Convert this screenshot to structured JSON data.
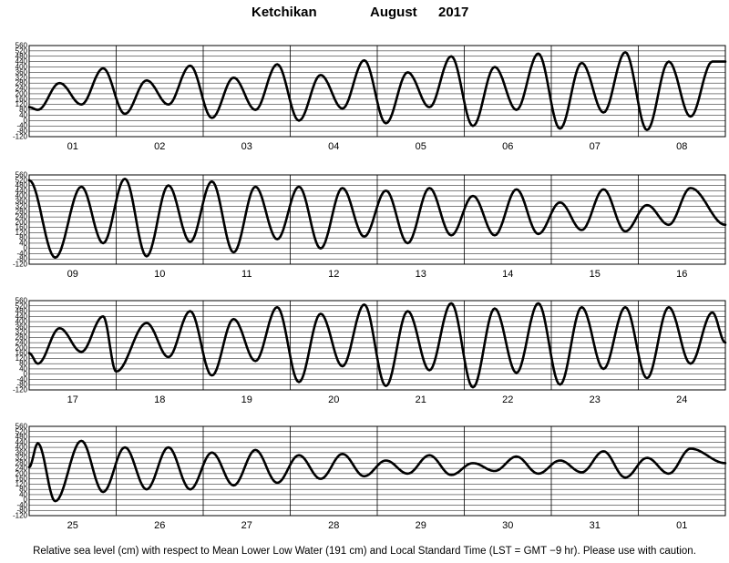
{
  "header": {
    "station": "Ketchikan",
    "month": "August",
    "year": "2017"
  },
  "footnote": "Relative sea level (cm) with respect to Mean Lower Low Water (191 cm) and Local Standard Time (LST = GMT −9 hr). Please use with caution.",
  "chart_data": {
    "type": "line",
    "title": "Ketchikan August 2017",
    "ylabel": "Relative sea level (cm)",
    "xlabel": "",
    "ylim": [
      -120,
      560
    ],
    "yticks": [
      560,
      520,
      480,
      440,
      400,
      360,
      320,
      280,
      240,
      200,
      160,
      120,
      80,
      40,
      0,
      -40,
      -80,
      -120
    ],
    "grid": true,
    "panels": [
      {
        "days": [
          "01",
          "02",
          "03",
          "04",
          "05",
          "06",
          "07",
          "08"
        ],
        "extrema": [
          [
            0,
            100
          ],
          [
            0.1,
            80
          ],
          [
            0.35,
            280
          ],
          [
            0.6,
            120
          ],
          [
            0.85,
            390
          ],
          [
            1.1,
            50
          ],
          [
            1.35,
            300
          ],
          [
            1.6,
            120
          ],
          [
            1.85,
            410
          ],
          [
            2.1,
            20
          ],
          [
            2.35,
            320
          ],
          [
            2.6,
            80
          ],
          [
            2.85,
            420
          ],
          [
            3.1,
            0
          ],
          [
            3.35,
            340
          ],
          [
            3.6,
            90
          ],
          [
            3.85,
            450
          ],
          [
            4.1,
            -20
          ],
          [
            4.35,
            360
          ],
          [
            4.6,
            100
          ],
          [
            4.85,
            480
          ],
          [
            5.1,
            -40
          ],
          [
            5.35,
            400
          ],
          [
            5.6,
            80
          ],
          [
            5.85,
            500
          ],
          [
            6.1,
            -60
          ],
          [
            6.35,
            430
          ],
          [
            6.6,
            60
          ],
          [
            6.85,
            510
          ],
          [
            7.1,
            -70
          ],
          [
            7.35,
            440
          ],
          [
            7.6,
            30
          ],
          [
            7.85,
            440
          ],
          [
            8,
            440
          ]
        ]
      },
      {
        "days": [
          "09",
          "10",
          "11",
          "12",
          "13",
          "14",
          "15",
          "16"
        ],
        "extrema": [
          [
            0,
            520
          ],
          [
            0.3,
            -70
          ],
          [
            0.6,
            470
          ],
          [
            0.85,
            40
          ],
          [
            1.1,
            530
          ],
          [
            1.35,
            -60
          ],
          [
            1.6,
            480
          ],
          [
            1.85,
            50
          ],
          [
            2.1,
            510
          ],
          [
            2.35,
            -30
          ],
          [
            2.6,
            470
          ],
          [
            2.85,
            70
          ],
          [
            3.1,
            470
          ],
          [
            3.35,
            0
          ],
          [
            3.6,
            460
          ],
          [
            3.85,
            90
          ],
          [
            4.1,
            440
          ],
          [
            4.35,
            40
          ],
          [
            4.6,
            460
          ],
          [
            4.85,
            100
          ],
          [
            5.1,
            400
          ],
          [
            5.35,
            100
          ],
          [
            5.6,
            450
          ],
          [
            5.85,
            110
          ],
          [
            6.1,
            350
          ],
          [
            6.35,
            140
          ],
          [
            6.6,
            450
          ],
          [
            6.85,
            130
          ],
          [
            7.1,
            330
          ],
          [
            7.35,
            180
          ],
          [
            7.6,
            460
          ],
          [
            8,
            180
          ]
        ]
      },
      {
        "days": [
          "17",
          "18",
          "19",
          "20",
          "21",
          "22",
          "23",
          "24"
        ],
        "extrema": [
          [
            0,
            160
          ],
          [
            0.1,
            80
          ],
          [
            0.35,
            350
          ],
          [
            0.6,
            170
          ],
          [
            0.85,
            440
          ],
          [
            1.0,
            20
          ],
          [
            1.35,
            390
          ],
          [
            1.6,
            130
          ],
          [
            1.85,
            480
          ],
          [
            2.1,
            -10
          ],
          [
            2.35,
            420
          ],
          [
            2.6,
            100
          ],
          [
            2.85,
            510
          ],
          [
            3.1,
            -60
          ],
          [
            3.35,
            460
          ],
          [
            3.6,
            60
          ],
          [
            3.85,
            530
          ],
          [
            4.1,
            -90
          ],
          [
            4.35,
            480
          ],
          [
            4.6,
            30
          ],
          [
            4.85,
            540
          ],
          [
            5.1,
            -100
          ],
          [
            5.35,
            500
          ],
          [
            5.6,
            10
          ],
          [
            5.85,
            540
          ],
          [
            6.1,
            -80
          ],
          [
            6.35,
            510
          ],
          [
            6.6,
            40
          ],
          [
            6.85,
            510
          ],
          [
            7.1,
            -30
          ],
          [
            7.35,
            510
          ],
          [
            7.6,
            80
          ],
          [
            7.85,
            470
          ],
          [
            8,
            240
          ]
        ]
      },
      {
        "days": [
          "25",
          "26",
          "27",
          "28",
          "29",
          "30",
          "31",
          "01"
        ],
        "extrema": [
          [
            0,
            250
          ],
          [
            0.1,
            430
          ],
          [
            0.3,
            -10
          ],
          [
            0.6,
            450
          ],
          [
            0.85,
            60
          ],
          [
            1.1,
            400
          ],
          [
            1.35,
            80
          ],
          [
            1.6,
            400
          ],
          [
            1.85,
            80
          ],
          [
            2.1,
            360
          ],
          [
            2.35,
            110
          ],
          [
            2.6,
            380
          ],
          [
            2.85,
            130
          ],
          [
            3.1,
            340
          ],
          [
            3.35,
            160
          ],
          [
            3.6,
            350
          ],
          [
            3.85,
            180
          ],
          [
            4.1,
            300
          ],
          [
            4.35,
            200
          ],
          [
            4.6,
            340
          ],
          [
            4.85,
            190
          ],
          [
            5.1,
            280
          ],
          [
            5.35,
            220
          ],
          [
            5.6,
            330
          ],
          [
            5.85,
            200
          ],
          [
            6.1,
            300
          ],
          [
            6.35,
            210
          ],
          [
            6.6,
            370
          ],
          [
            6.85,
            170
          ],
          [
            7.1,
            320
          ],
          [
            7.35,
            200
          ],
          [
            7.6,
            390
          ],
          [
            8,
            280
          ]
        ]
      }
    ]
  }
}
